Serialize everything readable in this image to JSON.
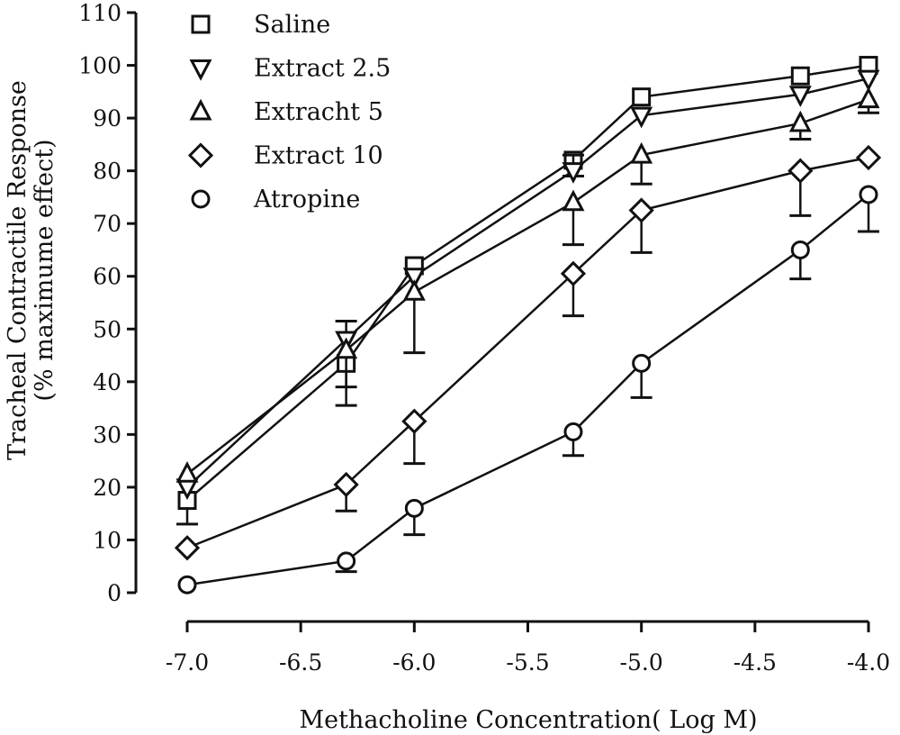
{
  "chart_data": {
    "type": "line",
    "xlabel": "Methacholine Concentration( Log M)",
    "ylabel": "Tracheal Contractile Response",
    "ylabel2": "(% maximume effect)",
    "xlim": [
      -7.0,
      -4.0
    ],
    "ylim": [
      0,
      110
    ],
    "x_ticks": [
      -7.0,
      -6.5,
      -6.0,
      -5.5,
      -5.0,
      -4.5,
      -4.0
    ],
    "x_tick_labels": [
      "-7.0",
      "-6.5",
      "-6.0",
      "-5.5",
      "-5.0",
      "-4.5",
      "-4.0"
    ],
    "y_ticks": [
      0,
      10,
      20,
      30,
      40,
      50,
      60,
      70,
      80,
      90,
      100,
      110
    ],
    "y_tick_labels": [
      "0",
      "10",
      "20",
      "30",
      "40",
      "50",
      "60",
      "70",
      "80",
      "90",
      "100",
      "110"
    ],
    "grid": false,
    "legend_position": "top-left",
    "x": [
      -7.0,
      -6.3,
      -6.0,
      -5.3,
      -5.0,
      -4.3,
      -4.0
    ],
    "series": [
      {
        "name": "Saline",
        "marker": "square",
        "values": [
          17.5,
          43.5,
          62,
          82,
          94,
          98,
          100
        ],
        "error": [
          4.5,
          8,
          0,
          3,
          0,
          0,
          0
        ],
        "error_dir": "down"
      },
      {
        "name": "Extract 2.5",
        "marker": "triangle-down",
        "values": [
          20,
          48,
          60,
          80,
          90.5,
          94.5,
          97.5
        ],
        "error": [
          0,
          3.5,
          0,
          3,
          0,
          0,
          0
        ],
        "error_dir": "up"
      },
      {
        "name": "Extracht 5",
        "marker": "triangle-up",
        "values": [
          22.5,
          46,
          57,
          74,
          83,
          89,
          93.5
        ],
        "error": [
          0,
          7,
          11.5,
          8,
          5.5,
          3,
          2.5
        ],
        "error_dir": "down"
      },
      {
        "name": "Extract 10",
        "marker": "diamond",
        "values": [
          8.5,
          20.5,
          32.5,
          60.5,
          72.5,
          80,
          82.5
        ],
        "error": [
          0,
          5,
          8,
          8,
          8,
          8.5,
          0
        ],
        "error_dir": "down"
      },
      {
        "name": "Atropine",
        "marker": "circle",
        "values": [
          1.5,
          6,
          16,
          30.5,
          43.5,
          65,
          75.5
        ],
        "error": [
          0,
          2,
          5,
          4.5,
          6.5,
          5.5,
          7
        ],
        "error_dir": "down"
      }
    ]
  }
}
